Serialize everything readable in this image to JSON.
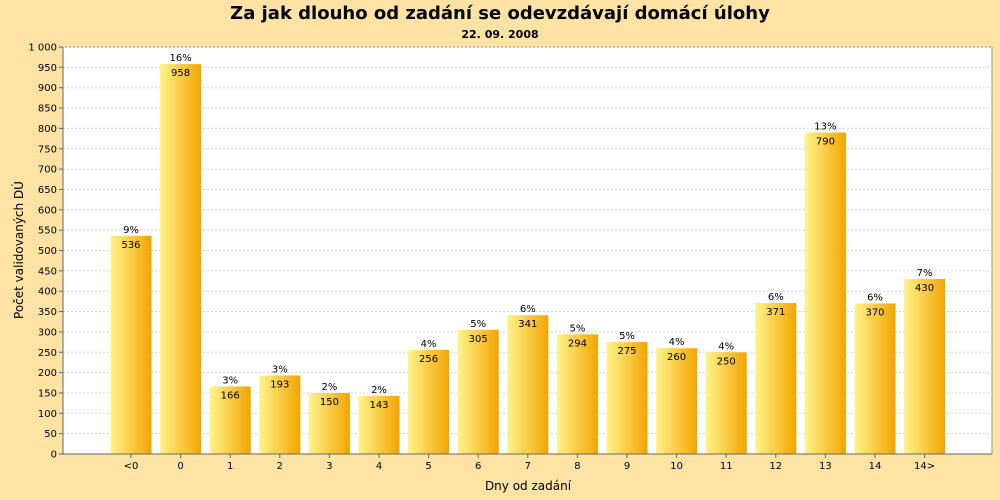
{
  "colors": {
    "background": "#FFE3A4",
    "plot_background": "#FFFFFF",
    "grid": "#D8D8D8",
    "bar_light": "#FFF48C",
    "bar_dark": "#F2A500"
  },
  "chart_data": {
    "type": "bar",
    "title": "Za jak dlouho od zadání se odevzdávají domácí úlohy",
    "subtitle": "22. 09. 2008",
    "xlabel": "Dny od zadání",
    "ylabel": "Počet validovaných DÚ",
    "ylim": [
      0,
      1000
    ],
    "ytick_step": 50,
    "yticks": [
      "0",
      "50",
      "100",
      "150",
      "200",
      "250",
      "300",
      "350",
      "400",
      "450",
      "500",
      "550",
      "600",
      "650",
      "700",
      "750",
      "800",
      "850",
      "900",
      "950",
      "1 000"
    ],
    "grid": true,
    "categories": [
      "<0",
      "0",
      "1",
      "2",
      "3",
      "4",
      "5",
      "6",
      "7",
      "8",
      "9",
      "10",
      "11",
      "12",
      "13",
      "14",
      "14>"
    ],
    "values": [
      536,
      958,
      166,
      193,
      150,
      143,
      256,
      305,
      341,
      294,
      275,
      260,
      250,
      371,
      790,
      370,
      430
    ],
    "value_labels": [
      "536",
      "958",
      "166",
      "193",
      "150",
      "143",
      "256",
      "305",
      "341",
      "294",
      "275",
      "260",
      "250",
      "371",
      "790",
      "370",
      "430"
    ],
    "percent_labels": [
      "9%",
      "16%",
      "3%",
      "3%",
      "2%",
      "2%",
      "4%",
      "5%",
      "6%",
      "5%",
      "5%",
      "4%",
      "4%",
      "6%",
      "13%",
      "6%",
      "7%"
    ]
  }
}
